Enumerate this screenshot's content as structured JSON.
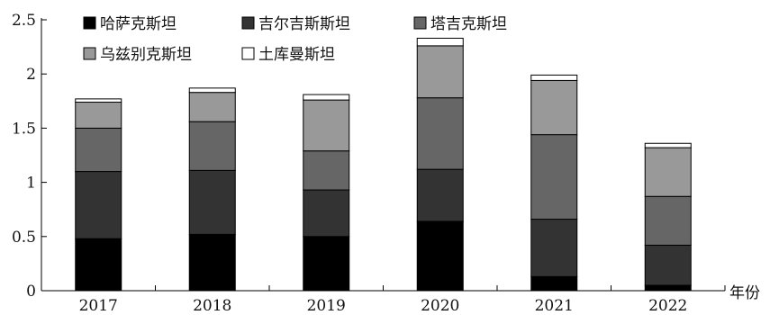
{
  "chart_data": {
    "type": "bar",
    "stacked": true,
    "title": "",
    "xlabel": "年份",
    "ylabel": "",
    "ylim": [
      0,
      2.5
    ],
    "yticks": [
      "0",
      "0.5",
      "1",
      "1.5",
      "2",
      "2.5"
    ],
    "grid": false,
    "legend_position": "top-left",
    "categories": [
      "2017",
      "2018",
      "2019",
      "2020",
      "2021",
      "2022"
    ],
    "series": [
      {
        "name": "哈萨克斯坦",
        "color": "#000000",
        "values": [
          0.48,
          0.52,
          0.5,
          0.64,
          0.13,
          0.05
        ]
      },
      {
        "name": "吉尔吉斯斯坦",
        "color": "#333333",
        "values": [
          0.62,
          0.59,
          0.43,
          0.48,
          0.53,
          0.37
        ]
      },
      {
        "name": "塔吉克斯坦",
        "color": "#666666",
        "values": [
          0.4,
          0.45,
          0.36,
          0.66,
          0.78,
          0.45
        ]
      },
      {
        "name": "乌兹别克斯坦",
        "color": "#999999",
        "values": [
          0.24,
          0.27,
          0.47,
          0.48,
          0.5,
          0.45
        ]
      },
      {
        "name": "土库曼斯坦",
        "color": "#ffffff",
        "values": [
          0.03,
          0.04,
          0.05,
          0.07,
          0.05,
          0.04
        ]
      }
    ]
  }
}
